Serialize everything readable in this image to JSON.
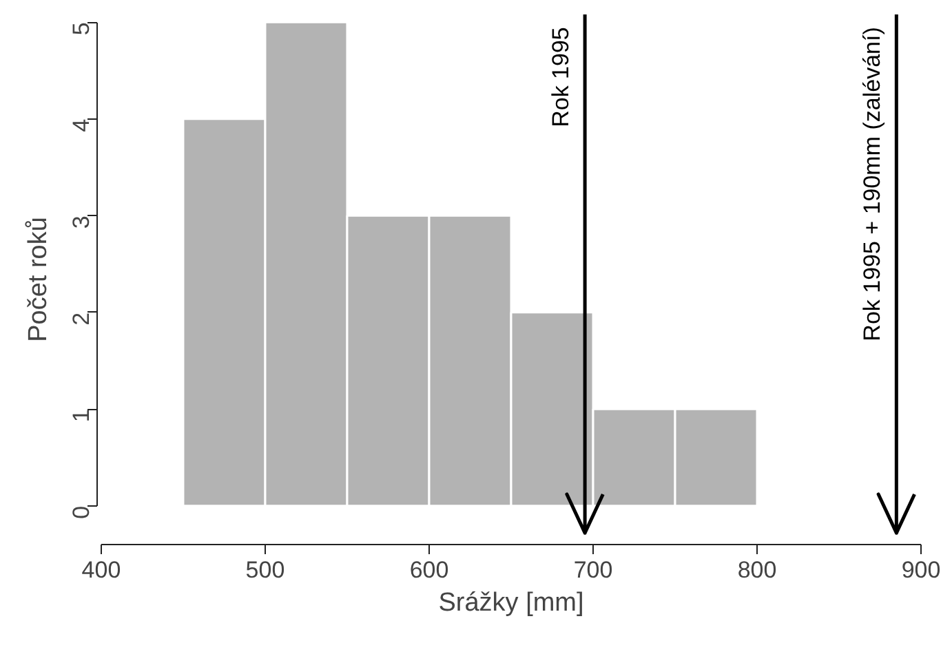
{
  "chart_data": {
    "type": "histogram",
    "xlabel": "Srážky [mm]",
    "ylabel": "Počet roků",
    "bins": [
      450,
      500,
      550,
      600,
      650,
      700,
      750,
      800
    ],
    "values": [
      4,
      5,
      3,
      3,
      2,
      1,
      1
    ],
    "color": "#b3b3b3",
    "xlim": [
      400,
      900
    ],
    "xticks": [
      400,
      500,
      600,
      700,
      800,
      900
    ],
    "ylim": [
      0,
      5
    ],
    "yticks": [
      0,
      1,
      2,
      3,
      4,
      5
    ],
    "grid": false,
    "ref_lines": [
      {
        "axis": "x",
        "value": 695,
        "label": "Rok 1995",
        "color": "#000000"
      },
      {
        "axis": "x",
        "value": 885,
        "label": "Rok 1995 + 190mm (zalévání)",
        "color": "#000000"
      }
    ]
  }
}
